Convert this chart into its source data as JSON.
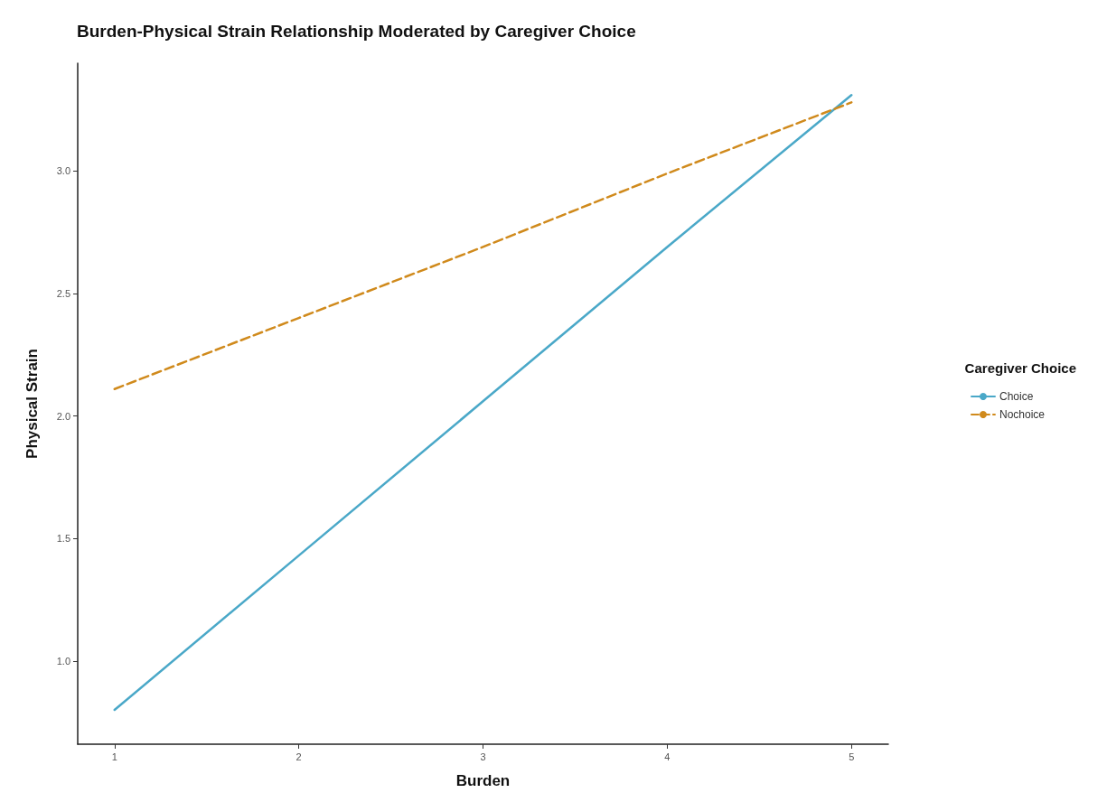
{
  "chart_data": {
    "type": "line",
    "title": "Burden-Physical Strain Relationship Moderated by Caregiver Choice",
    "xlabel": "Burden",
    "ylabel": "Physical Strain",
    "legend_title": "Caregiver Choice",
    "x": [
      1,
      2,
      3,
      4,
      5
    ],
    "series": [
      {
        "name": "Choice",
        "color": "#4aa8c8",
        "line_style": "solid",
        "values": [
          0.8,
          1.43,
          2.06,
          2.69,
          3.31
        ]
      },
      {
        "name": "Nochoice",
        "color": "#d08a1c",
        "line_style": "dashed",
        "values": [
          2.11,
          2.4,
          2.69,
          2.99,
          3.28
        ]
      }
    ],
    "xlim": [
      0.8,
      5.2
    ],
    "xticks": [
      1,
      2,
      3,
      4,
      5
    ],
    "ylim": [
      0.66,
      3.44
    ],
    "yticks": [
      {
        "value": 1,
        "label": "1.0"
      },
      1.5,
      {
        "value": 2,
        "label": "2.0"
      },
      2.5,
      {
        "value": 3,
        "label": "3.0"
      }
    ],
    "grid": false,
    "legend": "right",
    "marker": "none"
  }
}
